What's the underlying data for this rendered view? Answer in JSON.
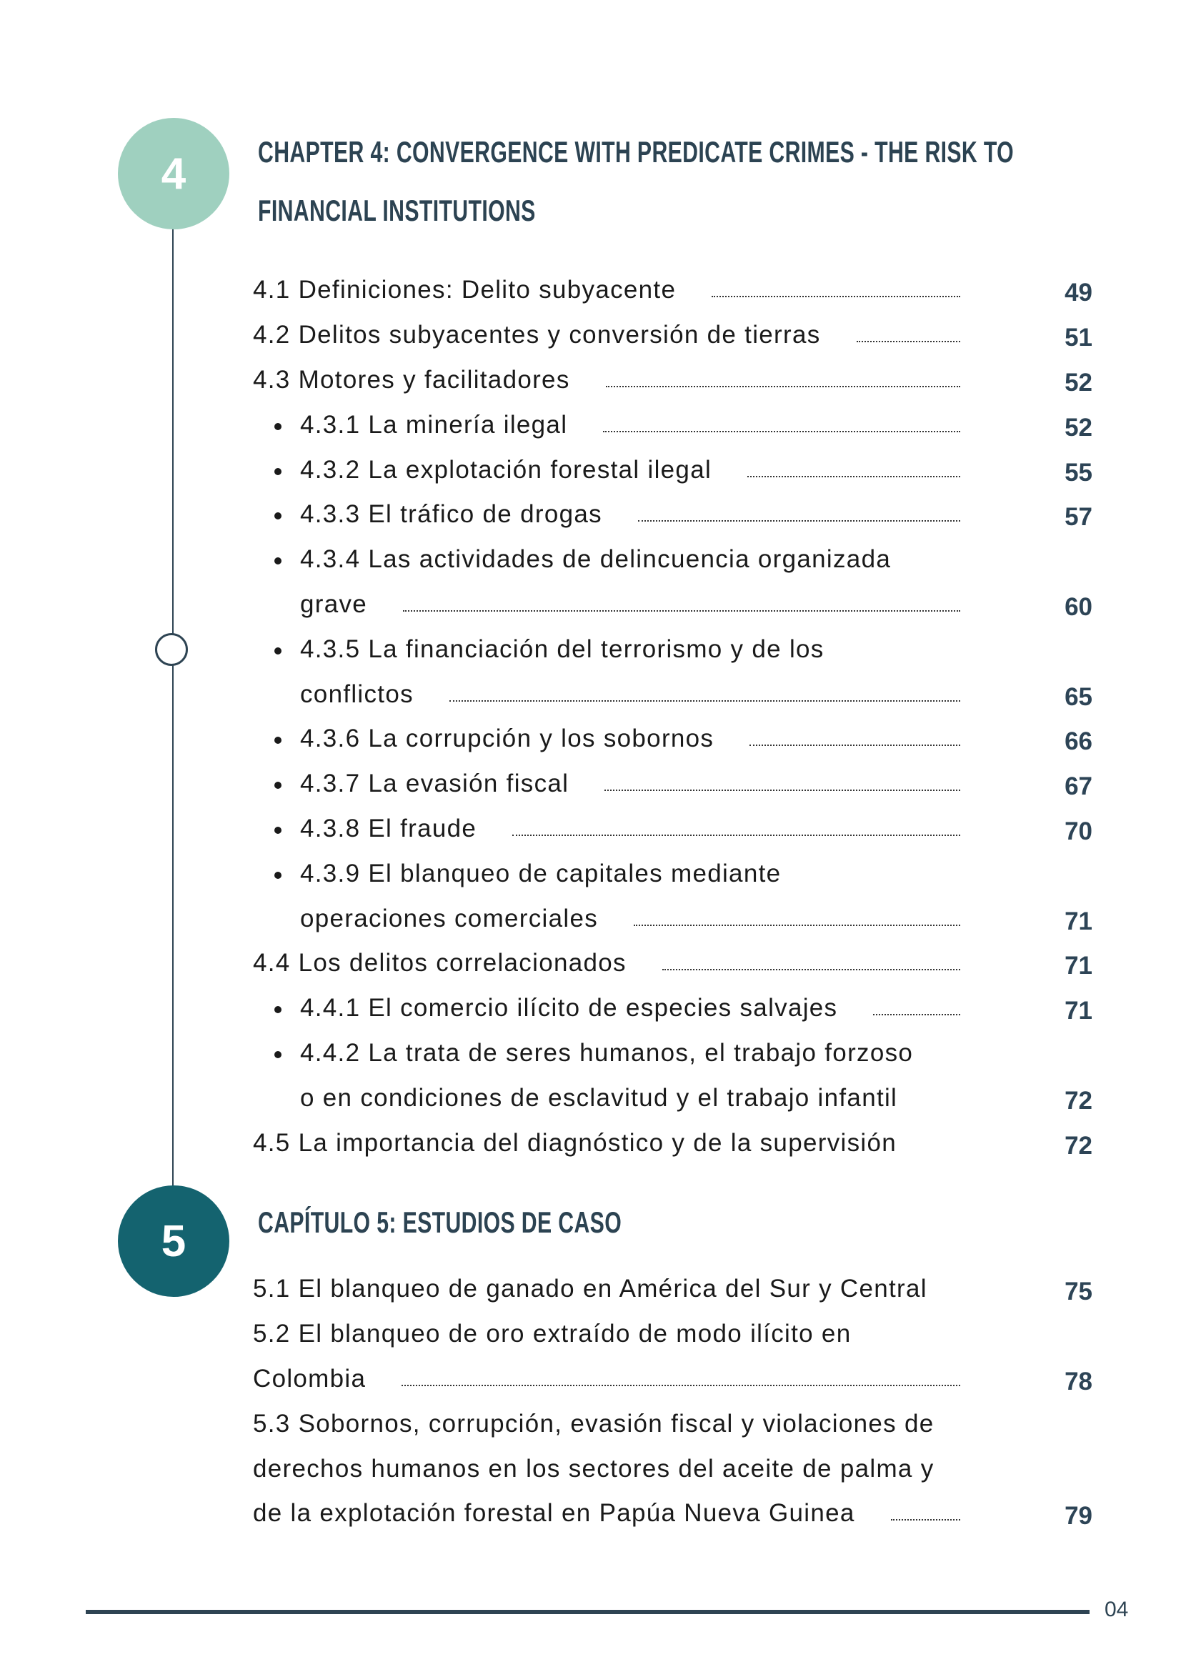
{
  "chapter4": {
    "number": "4",
    "title_lines": [
      "CHAPTER 4: CONVERGENCE WITH PREDICATE CRIMES - THE RISK TO",
      "FINANCIAL INSTITUTIONS"
    ],
    "circle_color": "#9fd0bf",
    "items": [
      {
        "level": 1,
        "lines": [
          "4.1 Definiciones: Delito subyacente"
        ],
        "page": "49",
        "leader": true
      },
      {
        "level": 1,
        "lines": [
          "4.2 Delitos subyacentes y conversión de tierras"
        ],
        "page": "51",
        "leader": true
      },
      {
        "level": 1,
        "lines": [
          "4.3 Motores y facilitadores"
        ],
        "page": "52",
        "leader": true
      },
      {
        "level": 2,
        "lines": [
          "4.3.1 La minería ilegal"
        ],
        "page": "52",
        "leader": true
      },
      {
        "level": 2,
        "lines": [
          "4.3.2 La explotación forestal ilegal"
        ],
        "page": "55",
        "leader": true
      },
      {
        "level": 2,
        "lines": [
          "4.3.3 El tráfico de drogas"
        ],
        "page": "57",
        "leader": true
      },
      {
        "level": 2,
        "lines": [
          "4.3.4 Las actividades de delincuencia organizada",
          "grave"
        ],
        "page": "60",
        "leader": true
      },
      {
        "level": 2,
        "lines": [
          "4.3.5 La financiación del terrorismo y de los",
          "conflictos"
        ],
        "page": "65",
        "leader": true
      },
      {
        "level": 2,
        "lines": [
          "4.3.6 La corrupción y los sobornos"
        ],
        "page": "66",
        "leader": true
      },
      {
        "level": 2,
        "lines": [
          "4.3.7 La evasión fiscal"
        ],
        "page": "67",
        "leader": true
      },
      {
        "level": 2,
        "lines": [
          "4.3.8 El fraude"
        ],
        "page": "70",
        "leader": true
      },
      {
        "level": 2,
        "lines": [
          "4.3.9 El blanqueo de capitales mediante",
          "operaciones comerciales"
        ],
        "page": "71",
        "leader": true
      },
      {
        "level": 1,
        "lines": [
          "4.4 Los delitos correlacionados"
        ],
        "page": "71",
        "leader": true
      },
      {
        "level": 2,
        "lines": [
          "4.4.1 El comercio ilícito de especies salvajes"
        ],
        "page": "71",
        "leader": true
      },
      {
        "level": 2,
        "lines": [
          "4.4.2 La trata de seres humanos, el trabajo forzoso",
          "o en condiciones de esclavitud y el trabajo infantil"
        ],
        "page": "72",
        "leader": false
      },
      {
        "level": 1,
        "lines": [
          "4.5 La importancia del diagnóstico y de la supervisión"
        ],
        "page": "72",
        "leader": false
      }
    ]
  },
  "chapter5": {
    "number": "5",
    "title_lines": [
      "CAPÍTULO 5: ESTUDIOS DE CASO"
    ],
    "circle_color": "#14636f",
    "items": [
      {
        "level": 1,
        "lines": [
          "5.1 El blanqueo de ganado en América del Sur y Central"
        ],
        "page": "75",
        "leader": false
      },
      {
        "level": 1,
        "lines": [
          "5.2 El blanqueo de oro extraído de modo ilícito en",
          "Colombia"
        ],
        "page": "78",
        "leader": true
      },
      {
        "level": 1,
        "lines": [
          "5.3 Sobornos, corrupción, evasión fiscal y violaciones de",
          "derechos humanos en los sectores del aceite de palma y",
          "de la explotación forestal en Papúa Nueva Guinea"
        ],
        "page": "79",
        "leader": true
      }
    ]
  },
  "footer": {
    "page_number": "04"
  }
}
